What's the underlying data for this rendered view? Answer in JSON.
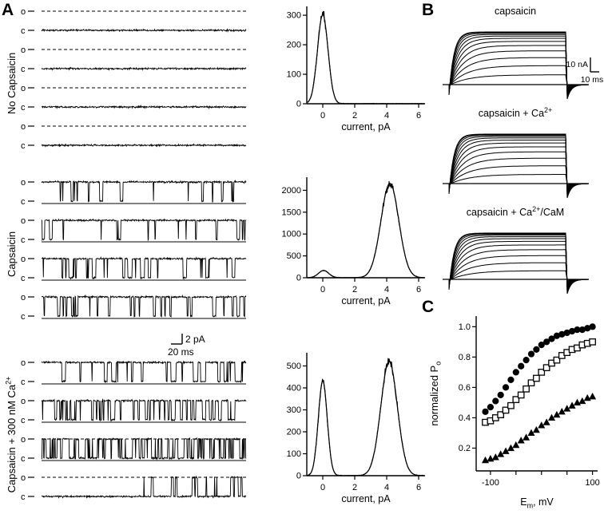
{
  "panelA": {
    "label": "A",
    "row_labels": {
      "open": "o",
      "closed": "c"
    },
    "scale_bar": {
      "current": "2 pA",
      "time": "20 ms"
    },
    "groups": [
      {
        "name_base": "No Capsaicin",
        "name_sup": "",
        "rows": [
          {
            "tau_open": 0,
            "tau_closed": 8,
            "open_line": "dashed",
            "closed_line": "none",
            "burst_after": 0
          },
          {
            "tau_open": 0,
            "tau_closed": 8,
            "open_line": "dashed",
            "closed_line": "none",
            "burst_after": 0
          },
          {
            "tau_open": 0,
            "tau_closed": 8,
            "open_line": "dashed",
            "closed_line": "none",
            "burst_after": 0
          },
          {
            "tau_open": 0,
            "tau_closed": 8,
            "open_line": "dashed",
            "closed_line": "none",
            "burst_after": 0
          }
        ]
      },
      {
        "name_base": "Capsaicin",
        "name_sup": "",
        "rows": [
          {
            "tau_open": 30,
            "tau_closed": 3,
            "open_line": "none",
            "closed_line": "solid",
            "burst_after": 0
          },
          {
            "tau_open": 22,
            "tau_closed": 3,
            "open_line": "none",
            "closed_line": "solid",
            "burst_after": 0
          },
          {
            "tau_open": 14,
            "tau_closed": 4,
            "open_line": "none",
            "closed_line": "solid",
            "burst_after": 0
          },
          {
            "tau_open": 18,
            "tau_closed": 5,
            "open_line": "none",
            "closed_line": "solid",
            "burst_after": 0
          }
        ]
      },
      {
        "name_base": "Capsaicin + 300 nM Ca",
        "name_sup": "2+",
        "rows": [
          {
            "tau_open": 16,
            "tau_closed": 5,
            "open_line": "none",
            "closed_line": "solid",
            "burst_after": 0
          },
          {
            "tau_open": 12,
            "tau_closed": 6,
            "open_line": "none",
            "closed_line": "solid",
            "burst_after": 0
          },
          {
            "tau_open": 5,
            "tau_closed": 5,
            "open_line": "dashed",
            "closed_line": "solid",
            "burst_after": 0
          },
          {
            "tau_open": 7,
            "tau_closed": 18,
            "open_line": "dashed",
            "closed_line": "none",
            "burst_after": 0.5
          }
        ]
      }
    ]
  },
  "panelB": {
    "label": "B",
    "traces_per_family": 13,
    "plots": [
      {
        "title_base": "capsaicin",
        "title_sup": "",
        "title_rest": "",
        "scale_current": "10 nA",
        "scale_time": "10 ms"
      },
      {
        "title_base": "capsaicin + Ca",
        "title_sup": "2+",
        "title_rest": ""
      },
      {
        "title_base": "capsaicin + Ca",
        "title_sup": "2+",
        "title_rest": "/CaM"
      }
    ]
  },
  "panelC": {
    "label": "C"
  },
  "chart_data": [
    {
      "id": "hist-0",
      "type": "area",
      "panel": "A",
      "title": "amplitude histogram, no capsaicin",
      "xlabel": "current, pA",
      "xlim": [
        -1,
        6.4
      ],
      "ylim": [
        0,
        330
      ],
      "xticks": [
        0,
        2,
        4,
        6
      ],
      "yticks": [
        0,
        100,
        200,
        300
      ],
      "peaks": [
        {
          "mu": 0,
          "sigma": 0.33,
          "amp": 302
        }
      ]
    },
    {
      "id": "hist-1",
      "type": "area",
      "panel": "A",
      "title": "amplitude histogram, capsaicin",
      "xlabel": "current, pA",
      "xlim": [
        -1,
        6.4
      ],
      "ylim": [
        0,
        2300
      ],
      "xticks": [
        0,
        2,
        4,
        6
      ],
      "yticks": [
        0,
        500,
        1000,
        1500,
        2000
      ],
      "peaks": [
        {
          "mu": 0.05,
          "sigma": 0.32,
          "amp": 165
        },
        {
          "mu": 4.2,
          "sigma": 0.56,
          "amp": 2160
        }
      ]
    },
    {
      "id": "hist-2",
      "type": "area",
      "panel": "A",
      "title": "amplitude histogram, capsaicin + 300 nM Ca2+",
      "xlabel": "current, pA",
      "xlim": [
        -1,
        6.4
      ],
      "ylim": [
        0,
        560
      ],
      "xticks": [
        0,
        2,
        4,
        6
      ],
      "yticks": [
        0,
        100,
        200,
        300,
        400,
        500
      ],
      "peaks": [
        {
          "mu": 0,
          "sigma": 0.28,
          "amp": 432
        },
        {
          "mu": 4.15,
          "sigma": 0.52,
          "amp": 520
        }
      ]
    },
    {
      "id": "scatter-c",
      "type": "scatter",
      "panel": "C",
      "xlabel_base": "E",
      "xlabel_sub": "m",
      "xlabel_rest": ", mV",
      "ylabel_base": "normalized P",
      "ylabel_sub": "o",
      "xlim": [
        -128,
        110
      ],
      "ylim": [
        0.05,
        1.07
      ],
      "xticks": [
        -100,
        -50,
        0,
        50,
        100
      ],
      "xtick_labels": [
        "-100",
        "",
        "",
        "",
        "100"
      ],
      "ytick_labels": [
        "0.2",
        "0.4",
        "0.6",
        "0.8",
        "1.0"
      ],
      "x": [
        -110,
        -100,
        -90,
        -80,
        -70,
        -60,
        -50,
        -40,
        -30,
        -20,
        -10,
        0,
        10,
        20,
        30,
        40,
        50,
        60,
        70,
        80,
        90,
        100
      ],
      "series": [
        {
          "marker": "filled-circle",
          "values": [
            0.44,
            0.47,
            0.51,
            0.55,
            0.6,
            0.65,
            0.7,
            0.74,
            0.78,
            0.82,
            0.85,
            0.88,
            0.9,
            0.92,
            0.94,
            0.95,
            0.96,
            0.97,
            0.98,
            0.98,
            0.99,
            1.0
          ]
        },
        {
          "marker": "open-square",
          "values": [
            0.37,
            0.38,
            0.4,
            0.42,
            0.45,
            0.48,
            0.52,
            0.55,
            0.59,
            0.63,
            0.66,
            0.7,
            0.73,
            0.76,
            0.78,
            0.81,
            0.83,
            0.85,
            0.86,
            0.88,
            0.89,
            0.9
          ]
        },
        {
          "marker": "filled-triangle",
          "values": [
            0.12,
            0.13,
            0.14,
            0.16,
            0.18,
            0.2,
            0.22,
            0.25,
            0.27,
            0.3,
            0.32,
            0.35,
            0.37,
            0.4,
            0.42,
            0.44,
            0.46,
            0.48,
            0.5,
            0.51,
            0.53,
            0.54
          ]
        }
      ]
    }
  ]
}
